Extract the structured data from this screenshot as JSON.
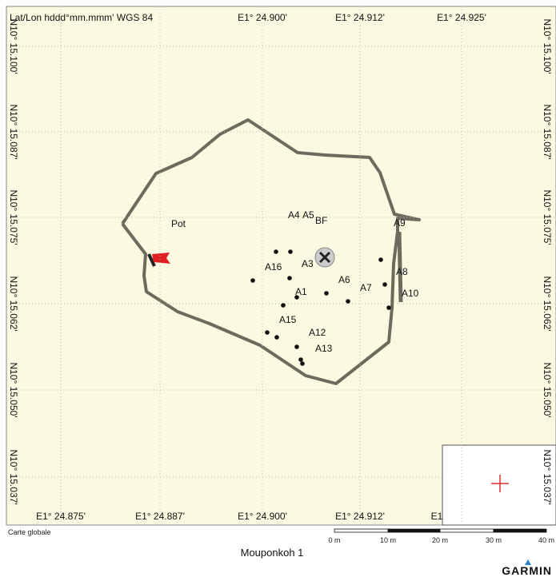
{
  "header": {
    "datum": "Lat/Lon hddd°mm.mmm' WGS 84"
  },
  "grid": {
    "lon_top": [
      "E1° 24.900'",
      "E1° 24.912'",
      "E1° 24.925'"
    ],
    "lon_bottom": [
      "E1° 24.875'",
      "E1° 24.887'",
      "E1° 24.900'",
      "E1° 24.912'",
      "E1"
    ],
    "lat_left": [
      "N10° 15.100'",
      "N10° 15.087'",
      "N10° 15.075'",
      "N10° 15.062'",
      "N10° 15.050'",
      "N10° 15.037'"
    ],
    "lat_right": [
      "N10° 15.100'",
      "N10° 15.087'",
      "N10° 15.075'",
      "N10° 15.062'",
      "N10° 15.050'",
      "N10° 15.037'"
    ]
  },
  "map": {
    "flag_label": "Pot",
    "center_label": "BF",
    "waypoints": [
      "A4",
      "A5",
      "A9",
      "A16",
      "A3",
      "A8",
      "A6",
      "A7",
      "A1",
      "A10",
      "A15",
      "A12",
      "A13"
    ]
  },
  "footer": {
    "overview": "Carte globale",
    "scale": [
      "0 m",
      "10 m",
      "20 m",
      "30 m",
      "40 m"
    ],
    "title": "Mouponkoh 1",
    "brand": "GARMIN"
  }
}
